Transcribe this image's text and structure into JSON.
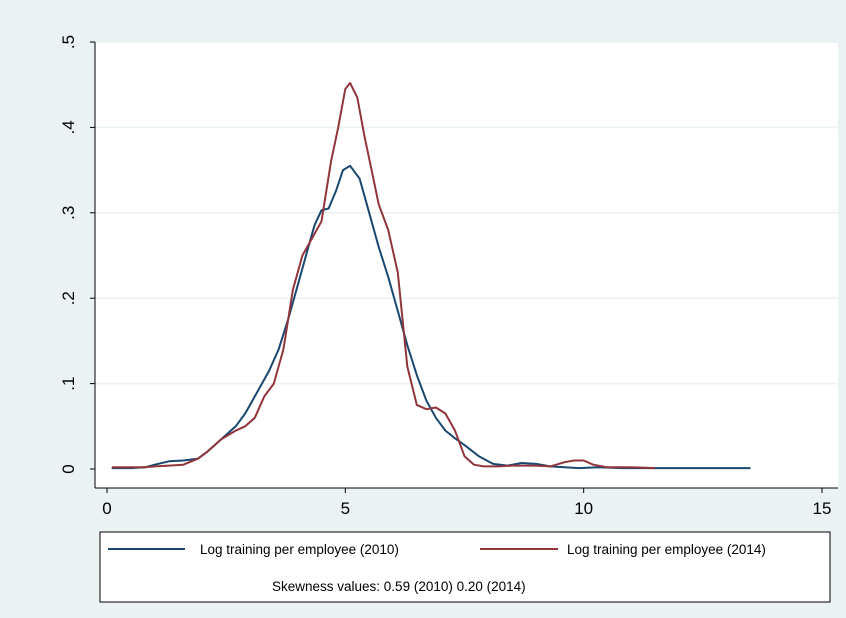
{
  "chart_data": {
    "type": "line",
    "title": "",
    "xlabel": "",
    "ylabel": "",
    "xlim": [
      0,
      15
    ],
    "ylim": [
      0,
      0.5
    ],
    "xticks": [
      0,
      5,
      10,
      15
    ],
    "xtick_labels": [
      "0",
      "5",
      "10",
      "15"
    ],
    "yticks": [
      0,
      0.1,
      0.2,
      0.3,
      0.4,
      0.5
    ],
    "ytick_labels": [
      "0",
      ".1",
      ".2",
      ".3",
      ".4",
      ".5"
    ],
    "grid": true,
    "legend_position": "bottom",
    "note": "Skewness values: 0.59 (2010) 0.20 (2014)",
    "series": [
      {
        "name": "Log training per employee (2010)",
        "color": "#1a476f",
        "x": [
          0.1,
          0.5,
          0.8,
          1.0,
          1.3,
          1.6,
          1.9,
          2.1,
          2.4,
          2.7,
          2.9,
          3.1,
          3.4,
          3.6,
          3.8,
          4.0,
          4.2,
          4.35,
          4.5,
          4.65,
          4.8,
          4.95,
          5.1,
          5.3,
          5.5,
          5.7,
          5.9,
          6.1,
          6.3,
          6.5,
          6.7,
          6.9,
          7.1,
          7.3,
          7.5,
          7.8,
          8.1,
          8.4,
          8.7,
          9.0,
          9.3,
          9.6,
          9.9,
          10.3,
          10.8,
          11.5,
          12.2,
          13.0,
          13.5
        ],
        "values": [
          0.001,
          0.001,
          0.002,
          0.005,
          0.009,
          0.01,
          0.012,
          0.02,
          0.035,
          0.05,
          0.065,
          0.085,
          0.115,
          0.14,
          0.175,
          0.215,
          0.255,
          0.285,
          0.303,
          0.305,
          0.325,
          0.35,
          0.355,
          0.34,
          0.3,
          0.26,
          0.225,
          0.185,
          0.145,
          0.11,
          0.08,
          0.06,
          0.045,
          0.036,
          0.028,
          0.015,
          0.006,
          0.004,
          0.007,
          0.006,
          0.003,
          0.002,
          0.001,
          0.002,
          0.001,
          0.001,
          0.001,
          0.001,
          0.001
        ]
      },
      {
        "name": "Log training per employee (2014)",
        "color": "#90353b",
        "x": [
          0.1,
          0.5,
          0.8,
          1.0,
          1.3,
          1.6,
          1.9,
          2.1,
          2.4,
          2.7,
          2.9,
          3.1,
          3.3,
          3.5,
          3.7,
          3.9,
          4.1,
          4.3,
          4.5,
          4.7,
          4.85,
          5.0,
          5.1,
          5.25,
          5.4,
          5.55,
          5.7,
          5.9,
          6.1,
          6.3,
          6.5,
          6.7,
          6.9,
          7.1,
          7.3,
          7.5,
          7.7,
          7.9,
          8.2,
          8.5,
          9.0,
          9.3,
          9.6,
          9.8,
          10.0,
          10.2,
          10.5,
          11.0,
          11.5
        ],
        "values": [
          0.002,
          0.002,
          0.002,
          0.003,
          0.004,
          0.005,
          0.012,
          0.02,
          0.035,
          0.045,
          0.05,
          0.06,
          0.085,
          0.1,
          0.14,
          0.21,
          0.25,
          0.27,
          0.29,
          0.36,
          0.4,
          0.445,
          0.452,
          0.435,
          0.39,
          0.35,
          0.31,
          0.28,
          0.23,
          0.12,
          0.075,
          0.07,
          0.072,
          0.065,
          0.045,
          0.015,
          0.005,
          0.003,
          0.003,
          0.004,
          0.004,
          0.003,
          0.008,
          0.01,
          0.01,
          0.005,
          0.002,
          0.002,
          0.001
        ]
      }
    ]
  }
}
